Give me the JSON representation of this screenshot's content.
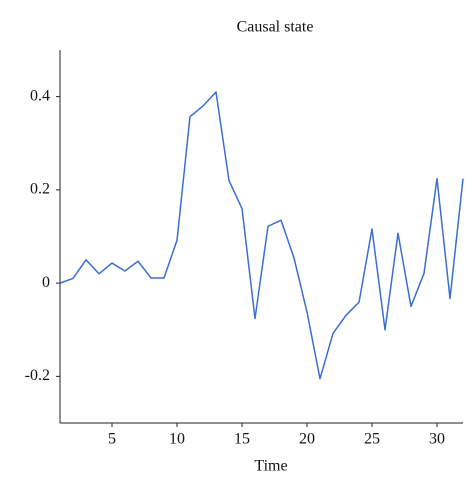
{
  "chart_data": {
    "type": "line",
    "title": "Causal state",
    "x_label": "Time",
    "x": [
      1,
      2,
      3,
      4,
      5,
      6,
      7,
      8,
      9,
      10,
      11,
      12,
      13,
      14,
      15,
      16,
      17,
      18,
      19,
      20,
      21,
      22,
      23,
      24,
      25,
      26,
      27,
      28,
      29,
      30,
      31,
      32
    ],
    "series": [
      {
        "name": "Causal state",
        "color": "#3a6fcf",
        "values": [
          0.0,
          0.01,
          0.05,
          0.02,
          0.043,
          0.026,
          0.047,
          0.011,
          0.011,
          0.092,
          0.357,
          0.38,
          0.41,
          0.22,
          0.16,
          -0.076,
          0.122,
          0.135,
          0.054,
          -0.062,
          -0.205,
          -0.108,
          -0.069,
          -0.041,
          0.116,
          -0.1,
          0.107,
          -0.05,
          0.021,
          0.224,
          -0.033,
          0.224
        ]
      }
    ],
    "xlim": [
      1,
      32
    ],
    "ylim": [
      -0.3,
      0.5
    ],
    "xticks": [
      5,
      10,
      15,
      20,
      25,
      30
    ],
    "yticks": [
      -0.2,
      0,
      0.2,
      0.4
    ],
    "grid": false
  }
}
